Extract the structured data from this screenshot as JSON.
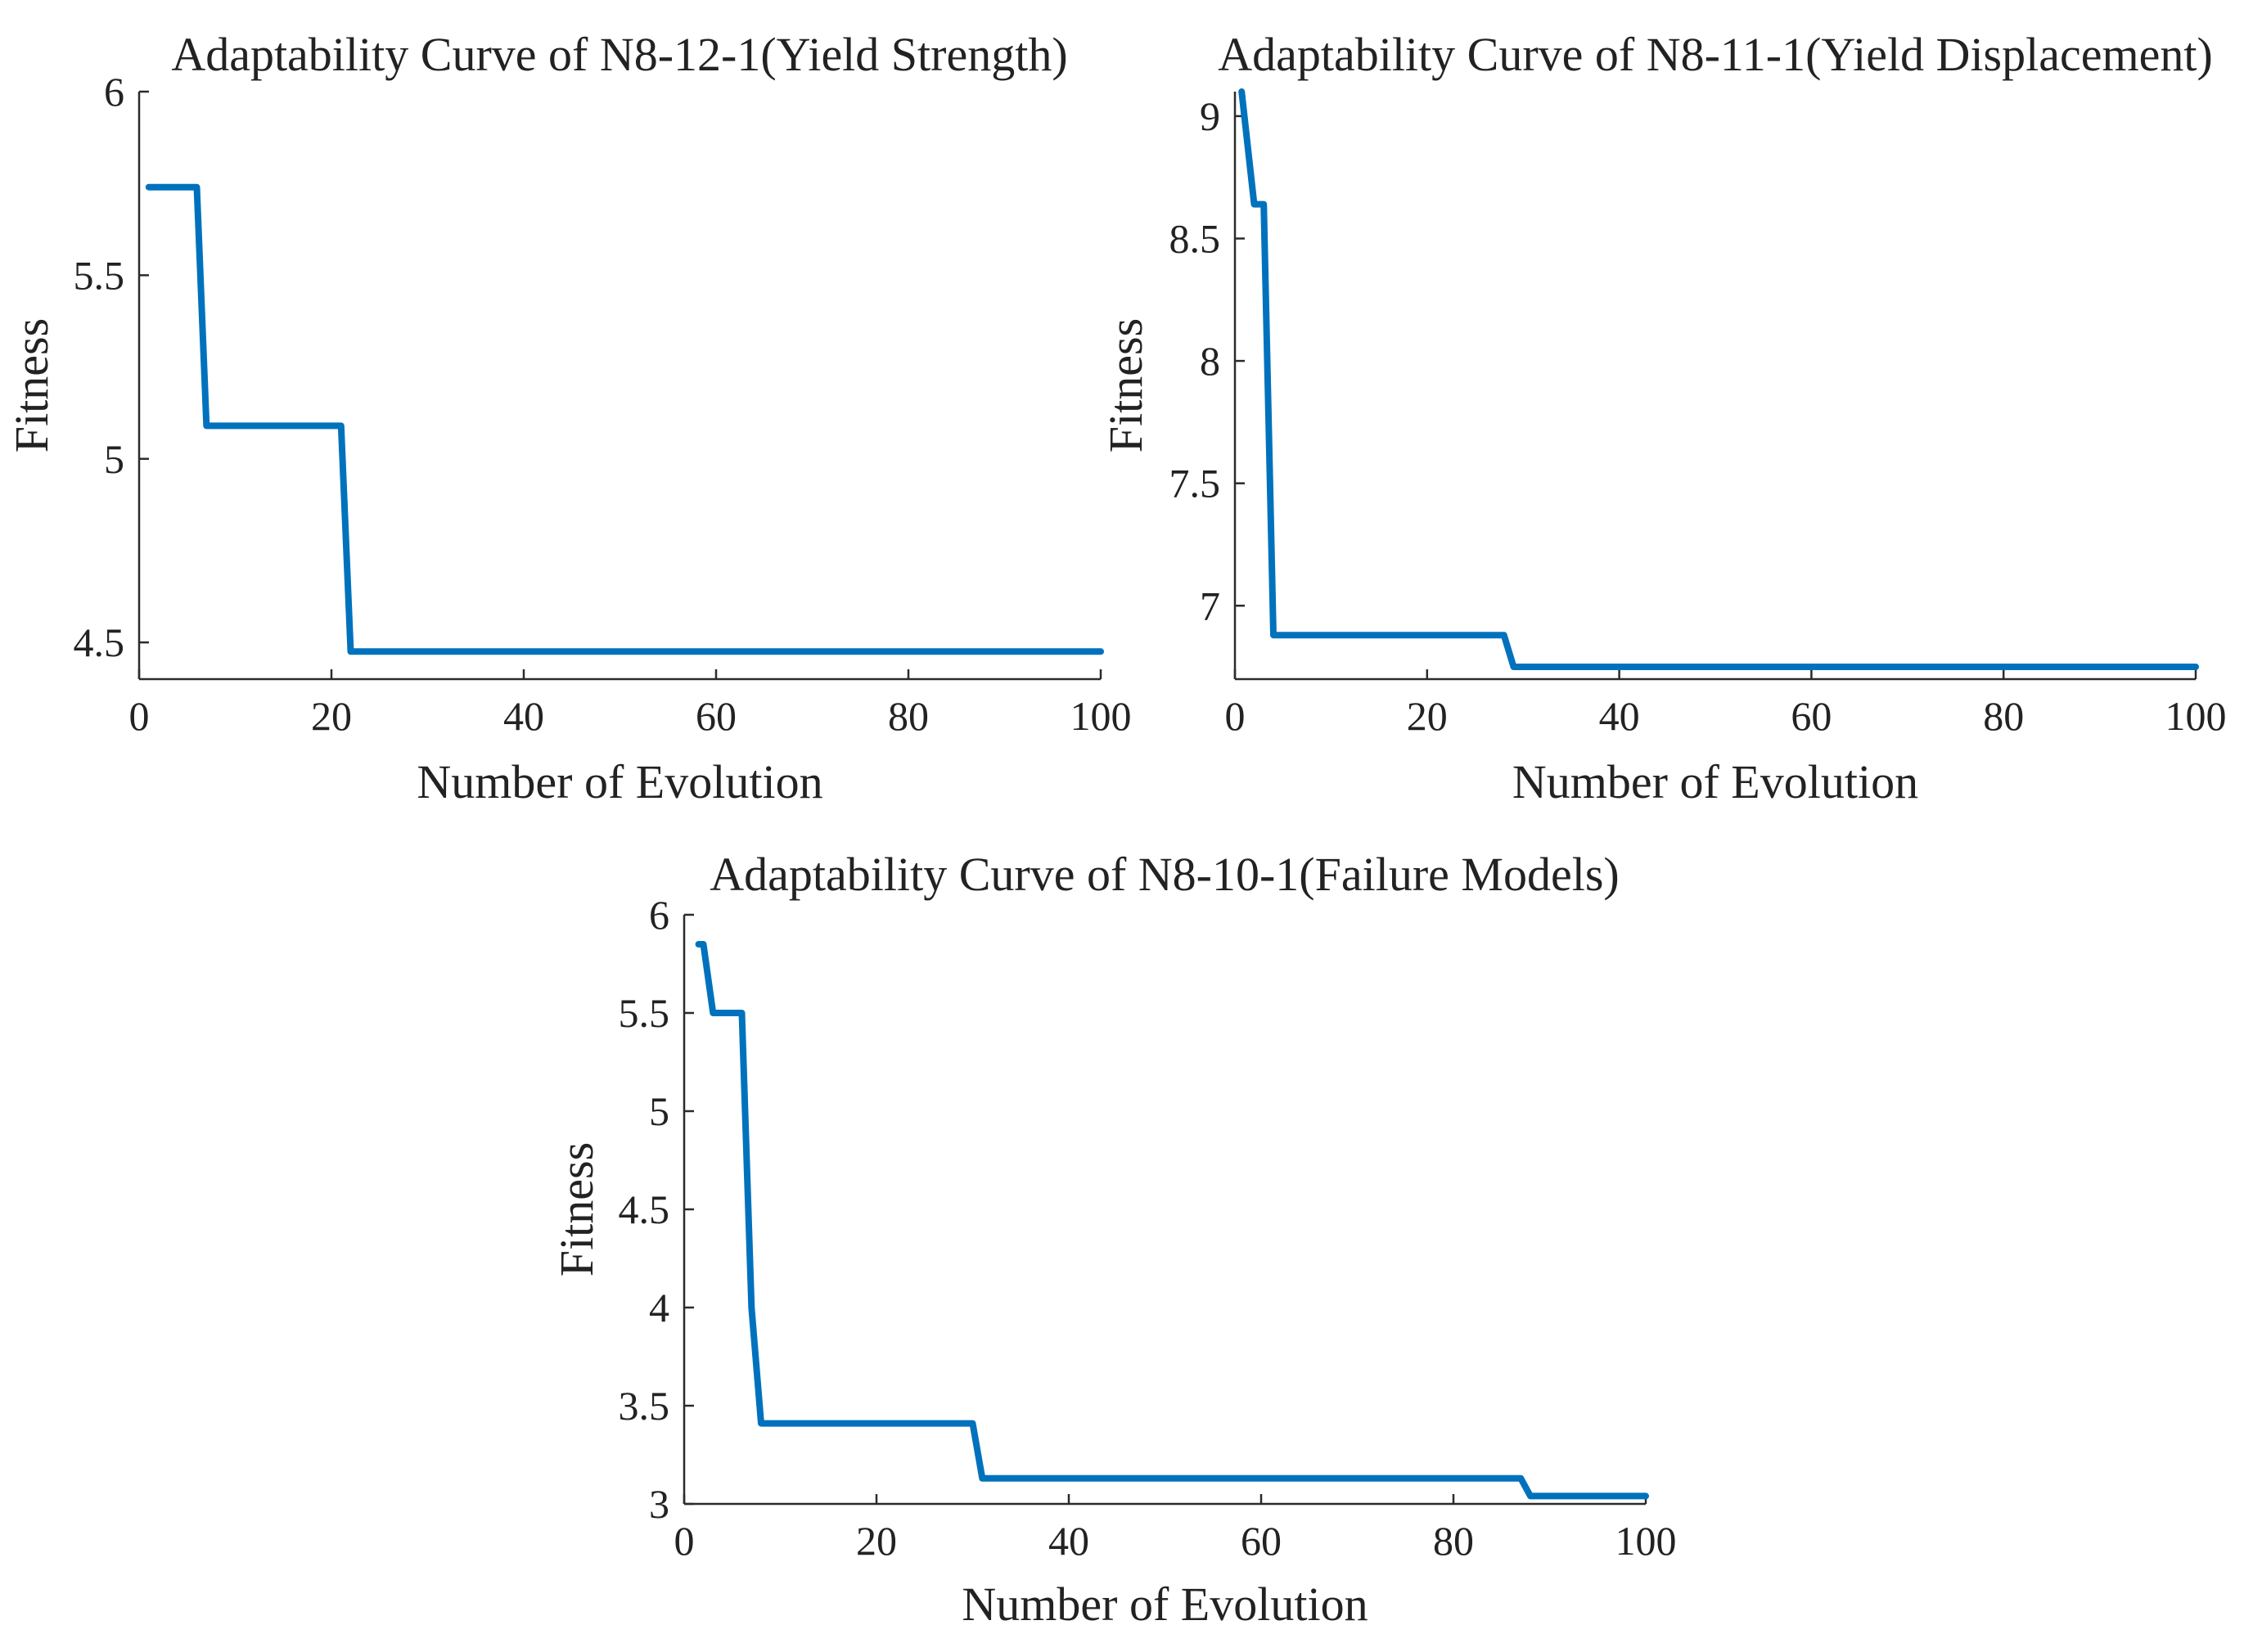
{
  "colors": {
    "line": "#0072BD",
    "axis": "#2b2b2b",
    "text": "#222222"
  },
  "chart_data": [
    {
      "type": "line",
      "title": "Adaptability Curve of N8-12-1(Yield Strength)",
      "xlabel": "Number of Evolution",
      "ylabel": "Fitness",
      "xlim": [
        0,
        100
      ],
      "ylim": [
        4.4,
        6
      ],
      "xticks": [
        0,
        20,
        40,
        60,
        80,
        100
      ],
      "xtick_labels": [
        "0",
        "20",
        "40",
        "60",
        "80",
        "100"
      ],
      "yticks": [
        4.5,
        5,
        5.5,
        6
      ],
      "ytick_labels": [
        "4.5",
        "5",
        "5.5",
        "6"
      ],
      "series": [
        {
          "name": "Fitness",
          "x": [
            1,
            6,
            7,
            21,
            22,
            100
          ],
          "y": [
            5.74,
            5.74,
            5.09,
            5.09,
            4.475,
            4.475
          ]
        }
      ]
    },
    {
      "type": "line",
      "title": "Adaptability Curve of N8-11-1(Yield Displacement)",
      "xlabel": "Number of Evolution",
      "ylabel": "Fitness",
      "xlim": [
        0,
        100
      ],
      "ylim": [
        6.7,
        9.1
      ],
      "xticks": [
        0,
        20,
        40,
        60,
        80,
        100
      ],
      "xtick_labels": [
        "0",
        "20",
        "40",
        "60",
        "80",
        "100"
      ],
      "yticks": [
        7,
        7.5,
        8,
        8.5,
        9
      ],
      "ytick_labels": [
        "7",
        "7.5",
        "8",
        "8.5",
        "9"
      ],
      "series": [
        {
          "name": "Fitness",
          "x": [
            0.7,
            2,
            3,
            4,
            28,
            29,
            100
          ],
          "y": [
            9.1,
            8.64,
            8.64,
            6.88,
            6.88,
            6.75,
            6.75
          ]
        }
      ]
    },
    {
      "type": "line",
      "title": "Adaptability Curve of N8-10-1(Failure Models)",
      "xlabel": "Number of Evolution",
      "ylabel": "Fitness",
      "xlim": [
        0,
        100
      ],
      "ylim": [
        3,
        6
      ],
      "xticks": [
        0,
        20,
        40,
        60,
        80,
        100
      ],
      "xtick_labels": [
        "0",
        "20",
        "40",
        "60",
        "80",
        "100"
      ],
      "yticks": [
        3,
        3.5,
        4,
        4.5,
        5,
        5.5,
        6
      ],
      "ytick_labels": [
        "3",
        "3.5",
        "4",
        "4.5",
        "5",
        "5.5",
        "6"
      ],
      "series": [
        {
          "name": "Fitness",
          "x": [
            1.5,
            2,
            3,
            6,
            7,
            8,
            30,
            31,
            87,
            88,
            100
          ],
          "y": [
            5.85,
            5.85,
            5.5,
            5.5,
            4.0,
            3.41,
            3.41,
            3.13,
            3.13,
            3.04,
            3.04
          ]
        }
      ]
    }
  ]
}
